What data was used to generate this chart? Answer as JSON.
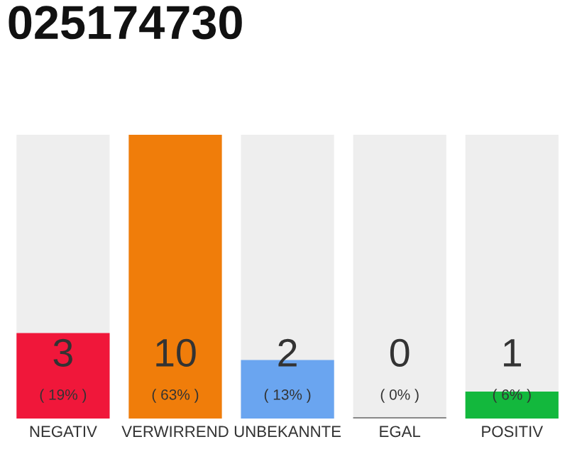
{
  "chart_data": {
    "type": "bar",
    "title": "025174730",
    "categories": [
      "NEGATIV",
      "VERWIRREND",
      "UNBEKANNTE",
      "EGAL",
      "POSITIV"
    ],
    "values": [
      19,
      63,
      13,
      0,
      6
    ],
    "colors": [
      "#f0173a",
      "#f07d0a",
      "#6aa5f0",
      "#888888",
      "#13b83d"
    ],
    "tick_labels": "x",
    "value_labels": [
      "( 19% )",
      "( 63% )",
      "( 13% )",
      "( 0% )",
      "( 6% )"
    ],
    "annotations": [
      "3",
      "10",
      "2",
      "0",
      "1"
    ],
    "grid": false,
    "legend": false
  }
}
